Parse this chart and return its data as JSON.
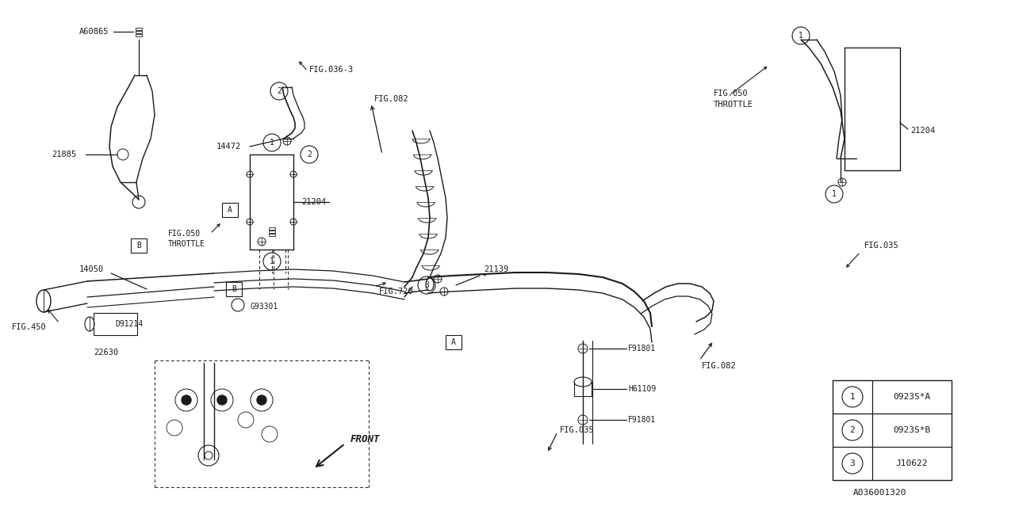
{
  "bg_color": "#ffffff",
  "line_color": "#1a1a1a",
  "fig_number": "A036001320",
  "legend": [
    {
      "num": "1",
      "code": "0923S*A"
    },
    {
      "num": "2",
      "code": "0923S*B"
    },
    {
      "num": "3",
      "code": "J10622"
    }
  ]
}
